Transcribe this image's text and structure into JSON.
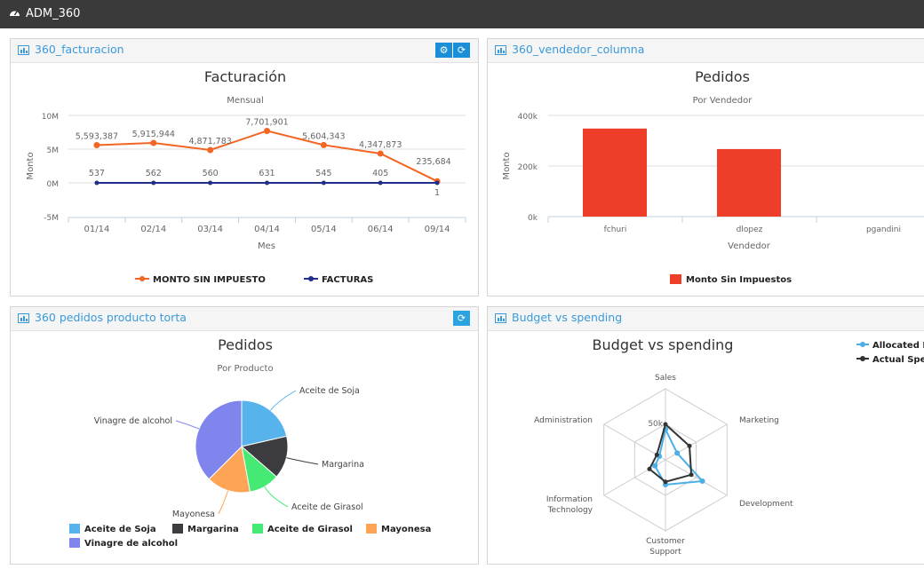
{
  "app": {
    "title": "ADM_360",
    "icon": "dashboard-icon"
  },
  "panels": {
    "facturacion": {
      "header": "360_facturacion",
      "buttons": [
        "gear-icon",
        "refresh-icon"
      ]
    },
    "vendedor": {
      "header": "360_vendedor_columna"
    },
    "torta": {
      "header": "360 pedidos producto torta",
      "buttons": [
        "refresh-icon"
      ]
    },
    "budget": {
      "header": "Budget vs spending"
    }
  },
  "chart_data": [
    {
      "type": "line",
      "title": "Facturación",
      "subtitle": "Mensual",
      "xlabel": "Mes",
      "ylabel": "Monto",
      "categories": [
        "01/14",
        "02/14",
        "03/14",
        "04/14",
        "05/14",
        "06/14",
        "09/14"
      ],
      "yticks": [
        "10M",
        "5M",
        "0M",
        "-5M"
      ],
      "ylim": [
        -5000000,
        10000000
      ],
      "grid": true,
      "legend": "bottom",
      "series": [
        {
          "name": "MONTO SIN IMPUESTO",
          "color": "#f26522",
          "values": [
            5593387,
            5915944,
            4871783,
            7701901,
            5604343,
            4347873,
            235684
          ],
          "labels": [
            "5,593,387",
            "5,915,944",
            "4,871,783",
            "7,701,901",
            "5,604,343",
            "4,347,873",
            "235,684"
          ]
        },
        {
          "name": "FACTURAS",
          "color": "#1f2f8a",
          "values": [
            537,
            562,
            560,
            631,
            545,
            405,
            1
          ],
          "labels": [
            "537",
            "562",
            "560",
            "631",
            "545",
            "405",
            "1"
          ]
        }
      ]
    },
    {
      "type": "bar",
      "title": "Pedidos",
      "subtitle": "Por Vendedor",
      "xlabel": "Vendedor",
      "ylabel": "Monto",
      "categories": [
        "fchuri",
        "dlopez",
        "pgandini"
      ],
      "yticks": [
        "400k",
        "200k",
        "0k"
      ],
      "ylim": [
        0,
        400000
      ],
      "grid": true,
      "legend": "bottom",
      "series": [
        {
          "name": "Monto Sin Impuestos",
          "color": "#ee3e2a",
          "values": [
            348000,
            267000,
            0
          ]
        }
      ]
    },
    {
      "type": "pie",
      "title": "Pedidos",
      "subtitle": "Por Producto",
      "legend": "bottom",
      "unit": "percent",
      "slices": [
        {
          "name": "Aceite de Soja",
          "value": 21.4,
          "color": "#56b3ec"
        },
        {
          "name": "Margarina",
          "value": 15.0,
          "color": "#3b3b40"
        },
        {
          "name": "Aceite de Girasol",
          "value": 10.7,
          "color": "#45ea74"
        },
        {
          "name": "Mayonesa",
          "value": 15.4,
          "color": "#fda456"
        },
        {
          "name": "Vinagre de alcohol",
          "value": 37.5,
          "color": "#7f85ec"
        }
      ]
    },
    {
      "type": "radar",
      "title": "Budget vs spending",
      "axes": [
        "Sales",
        "Marketing",
        "Development",
        "Customer Support",
        "Information Technology",
        "Administration"
      ],
      "tick_label": "50k",
      "rmax": 100000,
      "legend": "top-right",
      "series": [
        {
          "name": "Allocated Budget",
          "color": "#4aaee8",
          "values": [
            43000,
            19000,
            60000,
            35000,
            17000,
            10000
          ]
        },
        {
          "name": "Actual Spending",
          "color": "#333333",
          "values": [
            50000,
            39000,
            42000,
            31000,
            26000,
            14000
          ]
        }
      ]
    }
  ]
}
